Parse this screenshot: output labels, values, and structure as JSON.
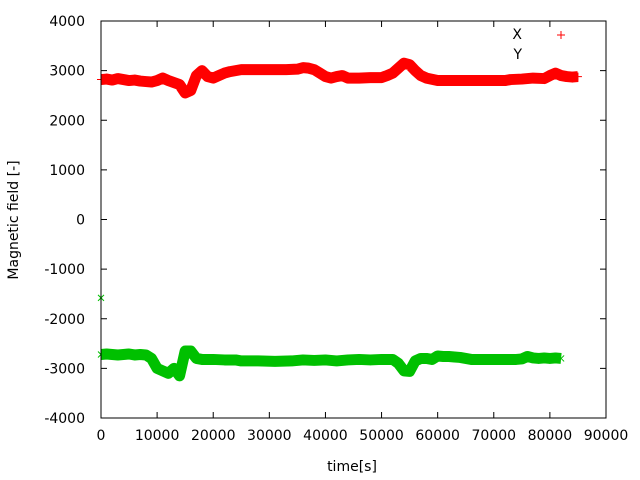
{
  "chart_data": {
    "type": "scatter",
    "title": "",
    "xlabel": "time[s]",
    "ylabel": "Magnetic field [-]",
    "xlim": [
      0,
      90000
    ],
    "ylim": [
      -4000,
      4000
    ],
    "xticks": [
      0,
      10000,
      20000,
      30000,
      40000,
      50000,
      60000,
      70000,
      80000,
      90000
    ],
    "yticks": [
      -4000,
      -3000,
      -2000,
      -1000,
      0,
      1000,
      2000,
      3000,
      4000
    ],
    "grid": false,
    "legend_position": "top-right",
    "series": [
      {
        "name": "X",
        "color": "#ff0000",
        "marker": "plus",
        "x": [
          0,
          1000,
          2000,
          3000,
          4000,
          5000,
          6000,
          7000,
          8000,
          9000,
          10000,
          11000,
          12000,
          13000,
          14000,
          15000,
          16000,
          17000,
          18000,
          19000,
          20000,
          21000,
          22000,
          23000,
          24000,
          25000,
          27000,
          30000,
          33000,
          35000,
          36000,
          37000,
          38000,
          39000,
          40000,
          41000,
          42000,
          43000,
          44000,
          46000,
          48000,
          50000,
          51000,
          52000,
          53000,
          54000,
          55000,
          56000,
          57000,
          58000,
          60000,
          63000,
          66000,
          70000,
          72000,
          73000,
          75000,
          77000,
          79000,
          80000,
          81000,
          82000,
          83000,
          84000,
          85000
        ],
        "y": [
          2820,
          2830,
          2810,
          2840,
          2820,
          2800,
          2810,
          2790,
          2780,
          2770,
          2800,
          2850,
          2800,
          2760,
          2720,
          2550,
          2600,
          2900,
          3000,
          2880,
          2850,
          2900,
          2950,
          2980,
          3000,
          3020,
          3020,
          3020,
          3020,
          3030,
          3060,
          3050,
          3020,
          2950,
          2880,
          2850,
          2880,
          2900,
          2850,
          2850,
          2860,
          2860,
          2900,
          2950,
          3050,
          3150,
          3120,
          3000,
          2900,
          2850,
          2800,
          2800,
          2800,
          2800,
          2800,
          2820,
          2830,
          2850,
          2840,
          2900,
          2950,
          2900,
          2880,
          2870,
          2880
        ]
      },
      {
        "name": "Y",
        "color": "#00c000",
        "marker": "cross",
        "x": [
          0,
          0,
          1000,
          2000,
          3000,
          4000,
          5000,
          6000,
          7000,
          8000,
          9000,
          10000,
          11000,
          12000,
          13000,
          14000,
          15000,
          16000,
          17000,
          18000,
          20000,
          22000,
          24000,
          25000,
          28000,
          31000,
          34000,
          36000,
          38000,
          40000,
          42000,
          44000,
          46000,
          48000,
          50000,
          52000,
          53000,
          54000,
          55000,
          56000,
          57000,
          58000,
          59000,
          60000,
          61000,
          62000,
          63000,
          64000,
          66000,
          68000,
          70000,
          72000,
          74000,
          75000,
          76000,
          77000,
          78000,
          79000,
          80000,
          81000,
          82000
        ],
        "y": [
          -1580,
          -2720,
          -2710,
          -2720,
          -2730,
          -2720,
          -2710,
          -2730,
          -2720,
          -2730,
          -2800,
          -3000,
          -3050,
          -3100,
          -3000,
          -3150,
          -2650,
          -2650,
          -2800,
          -2820,
          -2820,
          -2830,
          -2830,
          -2850,
          -2850,
          -2860,
          -2850,
          -2830,
          -2840,
          -2830,
          -2850,
          -2830,
          -2820,
          -2830,
          -2820,
          -2820,
          -2900,
          -3050,
          -3060,
          -2850,
          -2800,
          -2800,
          -2820,
          -2750,
          -2760,
          -2760,
          -2770,
          -2780,
          -2820,
          -2820,
          -2820,
          -2820,
          -2820,
          -2810,
          -2760,
          -2790,
          -2800,
          -2790,
          -2800,
          -2790,
          -2800
        ]
      }
    ]
  }
}
